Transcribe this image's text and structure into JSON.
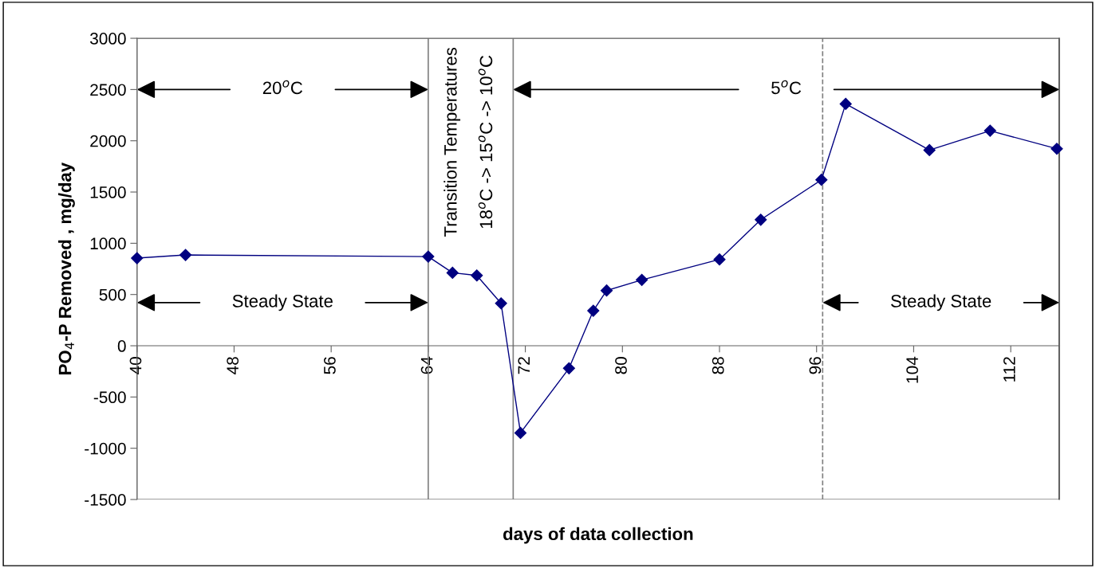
{
  "chart_data": {
    "type": "line",
    "xlabel": "days of data collection",
    "ylabel": "PO$_{4}$-P Removed , mg/day",
    "x": [
      40,
      44,
      64,
      66,
      68,
      70,
      71.6,
      75.6,
      77.6,
      78.7,
      81.6,
      88,
      91.4,
      96.4,
      98.4,
      105.3,
      110.3,
      115.8
    ],
    "series": [
      {
        "color": "#000080",
        "values": [
          855,
          886,
          870,
          712,
          686,
          414,
          -850,
          -220,
          342,
          539,
          643,
          842,
          1230,
          1619,
          2360,
          1909,
          2098,
          1922
        ]
      }
    ],
    "marker": "diamond",
    "line_style": "solid",
    "xlim": [
      40,
      116
    ],
    "xticks": [
      40,
      48,
      56,
      64,
      72,
      80,
      88,
      96,
      104,
      112
    ],
    "ylim": [
      -1500,
      3000
    ],
    "yticks": [
      -1500,
      -1000,
      -500,
      0,
      500,
      1000,
      1500,
      2000,
      2500,
      3000
    ],
    "grid": false,
    "legend": false,
    "ref_lines": [
      {
        "axis": "x",
        "value": 64,
        "color": "#808080",
        "line_style": "solid"
      },
      {
        "axis": "x",
        "value": 71,
        "color": "#808080",
        "line_style": "solid"
      },
      {
        "axis": "x",
        "value": 96.5,
        "color": "#808080",
        "line_style": "dashed"
      }
    ],
    "annotations": [
      "20$^{o}$C",
      "5$^{o}$C",
      "Steady State",
      "Steady State",
      "Transition Temperatures",
      "18$^{o}$C -> 15$^{o}$C -> 10$^{o}$C"
    ]
  }
}
